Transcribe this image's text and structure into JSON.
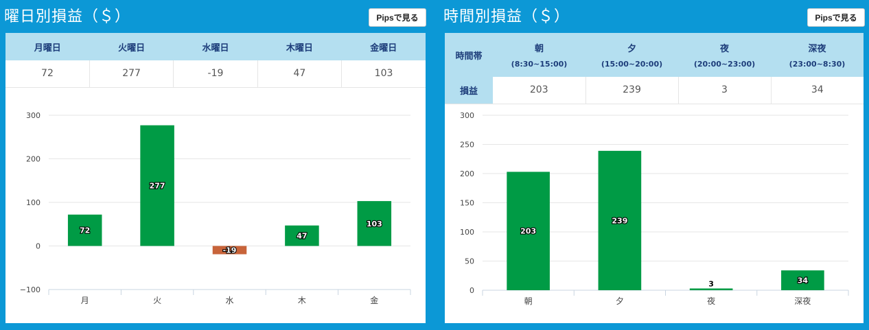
{
  "left_panel": {
    "title": "曜日別損益（＄）",
    "pips_button": "Pipsで見る",
    "table": {
      "headers": [
        "月曜日",
        "火曜日",
        "水曜日",
        "木曜日",
        "金曜日"
      ],
      "values": [
        "72",
        "277",
        "-19",
        "47",
        "103"
      ]
    },
    "chart_data": {
      "type": "bar",
      "categories": [
        "月",
        "火",
        "水",
        "木",
        "金"
      ],
      "values": [
        72,
        277,
        -19,
        47,
        103
      ],
      "data_labels": [
        "72",
        "277",
        "-19",
        "47",
        "103"
      ],
      "ylim": [
        -100,
        300
      ],
      "yticks": [
        "300",
        "200",
        "100",
        "0",
        "−100"
      ],
      "ytick_values": [
        300,
        200,
        100,
        0,
        -100
      ],
      "colors": {
        "positive": "#009b45",
        "negative": "#c8643a"
      },
      "grid": true
    }
  },
  "right_panel": {
    "title": "時間別損益（＄）",
    "pips_button": "Pipsで見る",
    "table": {
      "row_header_top": "時間帯",
      "row_header_bottom": "損益",
      "headers": [
        {
          "name": "朝",
          "range": "(8:30~15:00)"
        },
        {
          "name": "夕",
          "range": "(15:00~20:00)"
        },
        {
          "name": "夜",
          "range": "(20:00~23:00)"
        },
        {
          "name": "深夜",
          "range": "(23:00~8:30)"
        }
      ],
      "values": [
        "203",
        "239",
        "3",
        "34"
      ]
    },
    "chart_data": {
      "type": "bar",
      "categories": [
        "朝",
        "夕",
        "夜",
        "深夜"
      ],
      "values": [
        203,
        239,
        3,
        34
      ],
      "data_labels": [
        "203",
        "239",
        "3",
        "34"
      ],
      "ylim": [
        0,
        300
      ],
      "yticks": [
        "300",
        "250",
        "200",
        "150",
        "100",
        "50",
        "0"
      ],
      "ytick_values": [
        300,
        250,
        200,
        150,
        100,
        50,
        0
      ],
      "colors": {
        "positive": "#009b45",
        "negative": "#c8643a"
      },
      "grid": true
    }
  }
}
